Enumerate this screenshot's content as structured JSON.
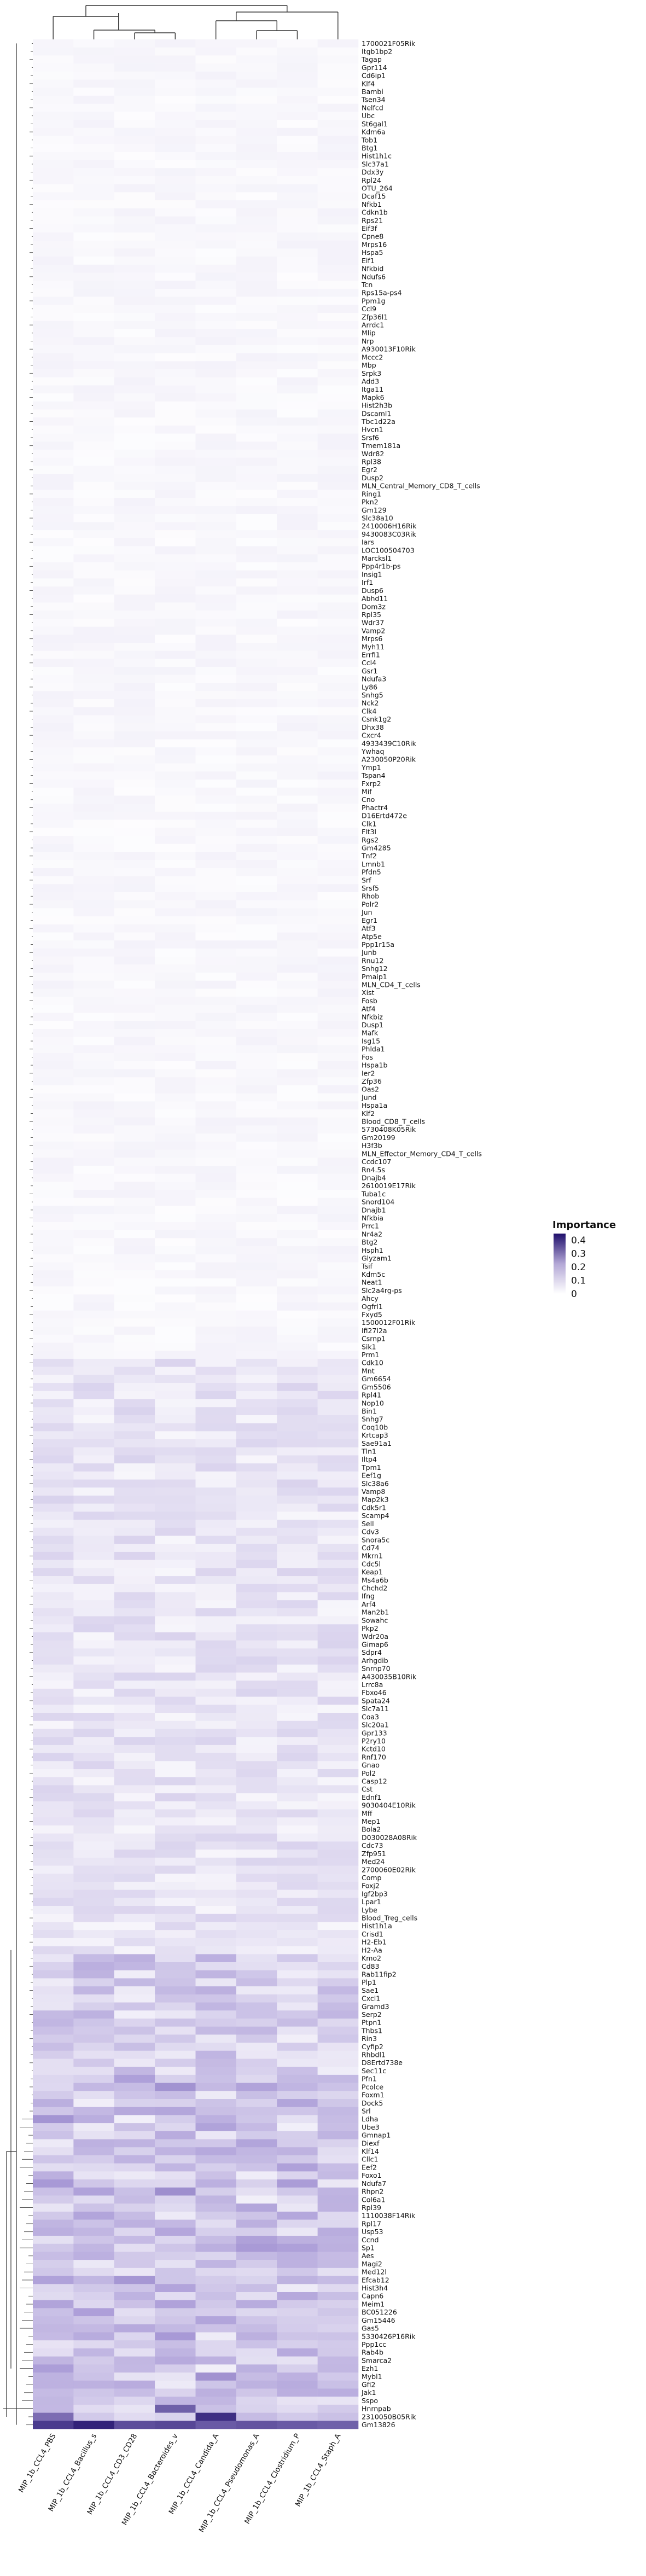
{
  "chart_data": {
    "type": "heatmap",
    "title": "",
    "xlabel": "",
    "ylabel": "",
    "legend": {
      "title": "Importance",
      "ticks": [
        0.4,
        0.3,
        0.2,
        0.1,
        0
      ],
      "range": [
        0,
        0.45
      ],
      "placement": "right",
      "colors": [
        "#ffffff",
        "#1f0f6b"
      ]
    },
    "columns": [
      "MIP_1b_CCL4_PBS",
      "MIP_1b_CCL4_Bacillus_s",
      "MIP_1b_CCL4_CD3_CD28",
      "MIP_1b_CCL4_Bacteroides_v",
      "MIP_1b_CCL4_Candida_A",
      "MIP_1b_CCL4_Pseudomonas_A",
      "MIP_1b_CCL4_Clostridium_P",
      "MIP_1b_CCL4_Staph_A"
    ],
    "rows": [
      "1700021F05Rik",
      "Itgb1bp2",
      "Tagap",
      "Gpr114",
      "Cd6ip1",
      "Klf4",
      "Bambi",
      "Tsen34",
      "Nelfcd",
      "Ubc",
      "St6gal1",
      "Kdm6a",
      "Tob1",
      "Btg1",
      "Hist1h1c",
      "Slc37a1",
      "Ddx3y",
      "Rpl24",
      "OTU_264",
      "Dcaf15",
      "Nfkb1",
      "Cdkn1b",
      "Rps21",
      "Eif3f",
      "Cpne8",
      "Mrps16",
      "Hspa5",
      "Eif1",
      "Nfkbid",
      "Ndufs6",
      "Tcn",
      "Rps15a-ps4",
      "Ppm1g",
      "Ccl9",
      "Zfp36l1",
      "Arrdc1",
      "Mlip",
      "Nrp",
      "A930013F10Rik",
      "Mccc2",
      "Mbp",
      "Srpk3",
      "Add3",
      "Itga11",
      "Mapk6",
      "Hist2h3b",
      "Dscaml1",
      "Tbc1d22a",
      "Hvcn1",
      "Srsf6",
      "Tmem181a",
      "Wdr82",
      "Rpl38",
      "Egr2",
      "Dusp2",
      "MLN_Central_Memory_CD8_T_cells",
      "Ring1",
      "Pkn2",
      "Gm129",
      "Slc38a10",
      "2410006H16Rik",
      "9430083C03Rik",
      "Iars",
      "LOC100504703",
      "Marcksl1",
      "Ppp4r1b-ps",
      "Insig1",
      "Irf1",
      "Dusp6",
      "Abhd11",
      "Dom3z",
      "Rpl35",
      "Wdr37",
      "Vamp2",
      "Mrps6",
      "Myh11",
      "Errfi1",
      "Ccl4",
      "Gsr1",
      "Ndufa3",
      "Ly86",
      "Snhg5",
      "Nck2",
      "Clk4",
      "Csnk1g2",
      "Dhx38",
      "Cxcr4",
      "4933439C10Rik",
      "Ywhaq",
      "A230050P20Rik",
      "Ymp1",
      "Tspan4",
      "Fxrp2",
      "Mif",
      "Cno",
      "Phactr4",
      "D16Ertd472e",
      "Clk1",
      "Flt3l",
      "Rgs2",
      "Gm4285",
      "Tnf2",
      "Lmnb1",
      "Pfdn5",
      "Srf",
      "Srsf5",
      "Rhob",
      "Polr2",
      "Jun",
      "Egr1",
      "Atf3",
      "Atp5e",
      "Ppp1r15a",
      "Junb",
      "Rnu12",
      "Snhg12",
      "Pmaip1",
      "MLN_CD4_T_cells",
      "Xist",
      "Fosb",
      "Atf4",
      "Nfkbiz",
      "Dusp1",
      "Mafk",
      "Isg15",
      "Phlda1",
      "Fos",
      "Hspa1b",
      "Ier2",
      "Zfp36",
      "Oas2",
      "Jund",
      "Hspa1a",
      "Klf2",
      "Blood_CD8_T_cells",
      "5730408K05Rik",
      "Gm20199",
      "H3f3b",
      "MLN_Effector_Memory_CD4_T_cells",
      "Ccdc107",
      "Rn4.5s",
      "Dnajb4",
      "2610019E17Rik",
      "Tuba1c",
      "Snord104",
      "Dnajb1",
      "Nfkbia",
      "Prrc1",
      "Nr4a2",
      "Btg2",
      "Hsph1",
      "Glyzam1",
      "Tsif",
      "Kdm5c",
      "Neat1",
      "Slc2a4rg-ps",
      "Ahcy",
      "Ogfrl1",
      "Fxyd5",
      "1500012F01Rik",
      "Ifi27l2a",
      "Csrnp1",
      "Sik1",
      "Prm1",
      "Cdk10",
      "Mnt",
      "Gm6654",
      "Gm5506",
      "Rpl41",
      "Nop10",
      "Bin1",
      "Snhg7",
      "Coq10b",
      "Krtcap3",
      "Sae91a1",
      "Tln1",
      "Iltp4",
      "Tpm1",
      "Eef1g",
      "Slc38a6",
      "Vamp8",
      "Map2k3",
      "Cdk5r1",
      "Scamp4",
      "Sell",
      "Cdv3",
      "Snora5c",
      "Cd74",
      "Mkrn1",
      "Cdc5l",
      "Keap1",
      "Ms4a6b",
      "Chchd2",
      "Ifng",
      "Arf4",
      "Man2b1",
      "Sowahc",
      "Pkp2",
      "Wdr20a",
      "Gimap6",
      "Sdpr4",
      "Arhgdib",
      "Snrnp70",
      "A430035B10Rik",
      "Lrrc8a",
      "Fbxo46",
      "Spata24",
      "Slc7a11",
      "Coa3",
      "Slc20a1",
      "Gpr133",
      "P2ry10",
      "Kctd10",
      "Rnf170",
      "Gnao",
      "Pol2",
      "Casp12",
      "Cst",
      "Ednf1",
      "9030404E10Rik",
      "Mff",
      "Mep1",
      "Bola2",
      "D030028A08Rik",
      "Cdc73",
      "Zfp951",
      "Med24",
      "2700060E02Rik",
      "Comp",
      "Foxj2",
      "Igf2bp3",
      "Lpar1",
      "Lybe",
      "Blood_Treg_cells",
      "Hist1h1a",
      "Crisd1",
      "H2-Eb1",
      "H2-Aa",
      "Kmo2",
      "Cd83",
      "Rab11fip2",
      "Plp1",
      "Sae1",
      "Cxcl1",
      "Gramd3",
      "Serp2",
      "Ptpn1",
      "Thbs1",
      "Rin3",
      "Cyfip2",
      "Rhbdl1",
      "D8Ertd738e",
      "Sec11c",
      "Pfn1",
      "Pcolce",
      "Foxm1",
      "Dock5",
      "Srl",
      "Ldha",
      "Ube3",
      "Gmnap1",
      "Diexf",
      "Klf14",
      "Cllc1",
      "Eef2",
      "Foxo1",
      "Ndufa7",
      "Rhpn2",
      "Col6a1",
      "Rpl39",
      "1110038F14Rik",
      "Rpl17",
      "Usp53",
      "Ccnd",
      "Sp1",
      "Aes",
      "Magi2",
      "Med12l",
      "Efcab12",
      "Hist3h4",
      "Capn6",
      "Meim1",
      "BC051226",
      "Gm15446",
      "Gas5",
      "5330426P16Rik",
      "Ppp1cc",
      "Rab4b",
      "Smarca2",
      "Ezh1",
      "Mybl1",
      "Gfi2",
      "Jak1",
      "Sspo",
      "Hnrnpab",
      "2310050B05Rik",
      "Gm13826"
    ],
    "values_note": "Importance values per gene (rows) and condition (columns); mostly low (<0.1) with high values concentrated in the bottom rows."
  }
}
